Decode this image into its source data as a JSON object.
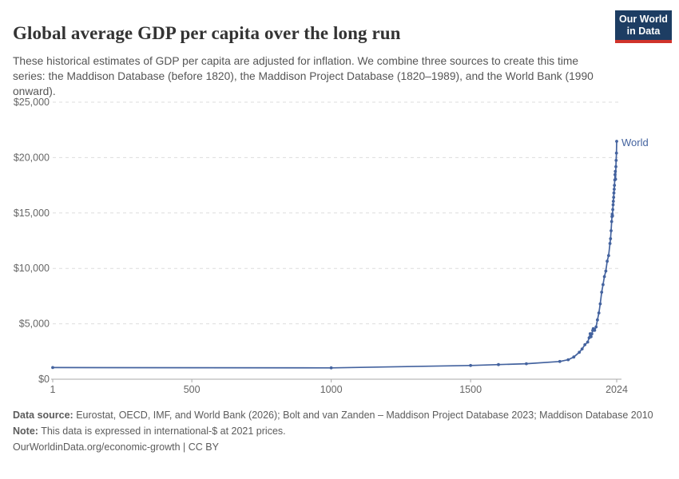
{
  "header": {
    "title": "Global average GDP per capita over the long run",
    "subtitle": "These historical estimates of GDP per capita are adjusted for inflation. We combine three sources to create this time series: the Maddison Database (before 1820), the Maddison Project Database (1820–1989), and the World Bank (1990 onward)."
  },
  "logo": {
    "line1": "Our World",
    "line2": "in Data"
  },
  "footer": {
    "source_label": "Data source:",
    "source_text": " Eurostat, OECD, IMF, and World Bank (2026); Bolt and van Zanden – Maddison Project Database 2023; Maddison Database 2010",
    "note_label": "Note:",
    "note_text": " This data is expressed in international-$ at 2021 prices.",
    "citation": "OurWorldinData.org/economic-growth | CC BY"
  },
  "colors": {
    "line": "#44639f",
    "logo_bg": "#1d3d63",
    "logo_stripe": "#d0332b",
    "gridline": "#dddddd",
    "axis": "#a8a8a8",
    "tick_label": "#666666"
  },
  "chart_data": {
    "type": "line",
    "title": "Global average GDP per capita over the long run",
    "series_label": "World",
    "xlabel": "",
    "ylabel": "",
    "unit": "international-$ at 2021 prices",
    "xlim": [
      1,
      2024
    ],
    "ylim": [
      0,
      25000
    ],
    "grid": "horizontal-dashed",
    "legend_position": "end-of-line-label",
    "x_ticks": [
      {
        "value": 1,
        "label": "1"
      },
      {
        "value": 500,
        "label": "500"
      },
      {
        "value": 1000,
        "label": "1000"
      },
      {
        "value": 1500,
        "label": "1500"
      },
      {
        "value": 2024,
        "label": "2024"
      }
    ],
    "y_ticks": [
      {
        "value": 0,
        "label": "$0"
      },
      {
        "value": 5000,
        "label": "$5,000"
      },
      {
        "value": 10000,
        "label": "$10,000"
      },
      {
        "value": 15000,
        "label": "$15,000"
      },
      {
        "value": 20000,
        "label": "$20,000"
      },
      {
        "value": 25000,
        "label": "$25,000"
      }
    ],
    "points": [
      [
        1,
        1050
      ],
      [
        1000,
        1020
      ],
      [
        1500,
        1240
      ],
      [
        1600,
        1320
      ],
      [
        1700,
        1400
      ],
      [
        1820,
        1600
      ],
      [
        1850,
        1760
      ],
      [
        1870,
        2000
      ],
      [
        1890,
        2430
      ],
      [
        1900,
        2730
      ],
      [
        1910,
        3110
      ],
      [
        1920,
        3350
      ],
      [
        1925,
        3740
      ],
      [
        1929,
        4110
      ],
      [
        1932,
        3830
      ],
      [
        1935,
        4090
      ],
      [
        1938,
        4400
      ],
      [
        1940,
        4570
      ],
      [
        1945,
        4410
      ],
      [
        1950,
        4720
      ],
      [
        1955,
        5350
      ],
      [
        1960,
        5980
      ],
      [
        1965,
        6800
      ],
      [
        1970,
        7850
      ],
      [
        1975,
        8540
      ],
      [
        1980,
        9260
      ],
      [
        1985,
        9760
      ],
      [
        1990,
        10650
      ],
      [
        1995,
        11160
      ],
      [
        2000,
        12250
      ],
      [
        2002,
        12680
      ],
      [
        2004,
        13400
      ],
      [
        2006,
        14230
      ],
      [
        2007,
        14680
      ],
      [
        2008,
        14890
      ],
      [
        2009,
        14740
      ],
      [
        2010,
        15310
      ],
      [
        2011,
        15740
      ],
      [
        2012,
        16060
      ],
      [
        2013,
        16420
      ],
      [
        2014,
        16810
      ],
      [
        2015,
        17150
      ],
      [
        2016,
        17500
      ],
      [
        2017,
        17980
      ],
      [
        2018,
        18460
      ],
      [
        2019,
        18760
      ],
      [
        2020,
        18050
      ],
      [
        2021,
        19180
      ],
      [
        2022,
        19750
      ],
      [
        2023,
        20400
      ],
      [
        2024,
        21470
      ]
    ]
  }
}
